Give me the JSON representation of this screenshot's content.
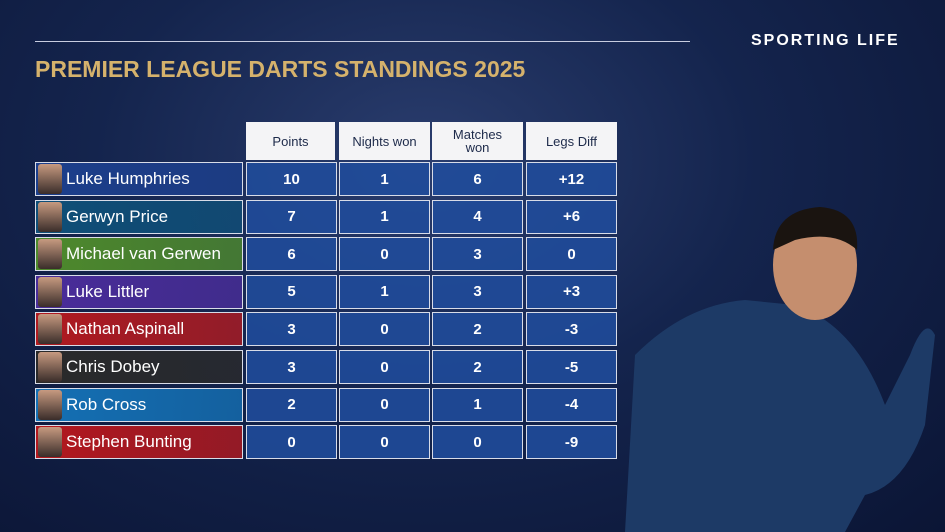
{
  "header": {
    "brand": "SPORTING LIFE",
    "title": "PREMIER LEAGUE DARTS STANDINGS 2025"
  },
  "table": {
    "columns": [
      "Points",
      "Nights won",
      "Matches won",
      "Legs Diff"
    ],
    "rows": [
      [
        "Luke Humphries",
        "10",
        "1",
        "6",
        "+12"
      ],
      [
        "Gerwyn Price",
        "7",
        "1",
        "4",
        "+6"
      ],
      [
        "Michael van Gerwen",
        "6",
        "0",
        "3",
        "0"
      ],
      [
        "Luke Littler",
        "5",
        "1",
        "3",
        "+3"
      ],
      [
        "Nathan Aspinall",
        "3",
        "0",
        "2",
        "-3"
      ],
      [
        "Chris Dobey",
        "3",
        "0",
        "2",
        "-5"
      ],
      [
        "Rob Cross",
        "2",
        "0",
        "1",
        "-4"
      ],
      [
        "Stephen Bunting",
        "0",
        "0",
        "0",
        "-9"
      ]
    ]
  }
}
